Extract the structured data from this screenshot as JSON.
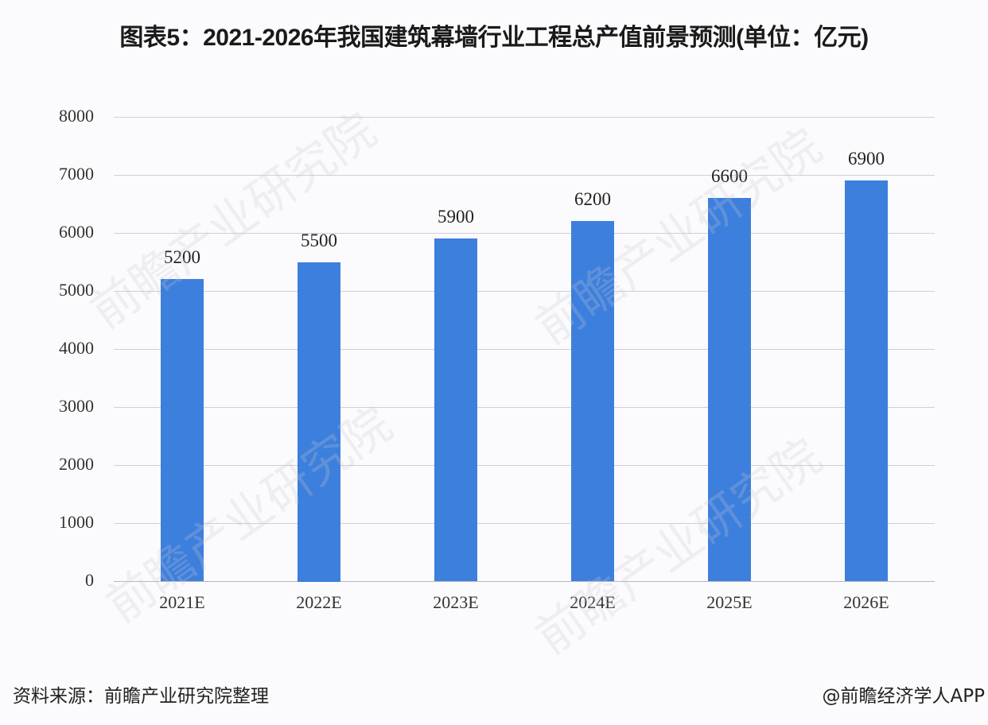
{
  "title": "图表5：2021-2026年我国建筑幕墙行业工程总产值前景预测(单位：亿元)",
  "source": "资料来源：前瞻产业研究院整理",
  "credit": "@前瞻经济学人APP",
  "watermark": "前瞻产业研究院",
  "colors": {
    "bar": "#3d7fdc",
    "grid": "#cfcfd4"
  },
  "chart_data": {
    "type": "bar",
    "title": "图表5：2021-2026年我国建筑幕墙行业工程总产值前景预测(单位：亿元)",
    "xlabel": "",
    "ylabel": "",
    "categories": [
      "2021E",
      "2022E",
      "2023E",
      "2024E",
      "2025E",
      "2026E"
    ],
    "values": [
      5200,
      5500,
      5900,
      6200,
      6600,
      6900
    ],
    "ylim": [
      0,
      8000
    ],
    "yticks": [
      "0",
      "1000",
      "2000",
      "3000",
      "4000",
      "5000",
      "6000",
      "7000",
      "8000"
    ],
    "grid": true,
    "legend": false,
    "data_labels": true
  }
}
